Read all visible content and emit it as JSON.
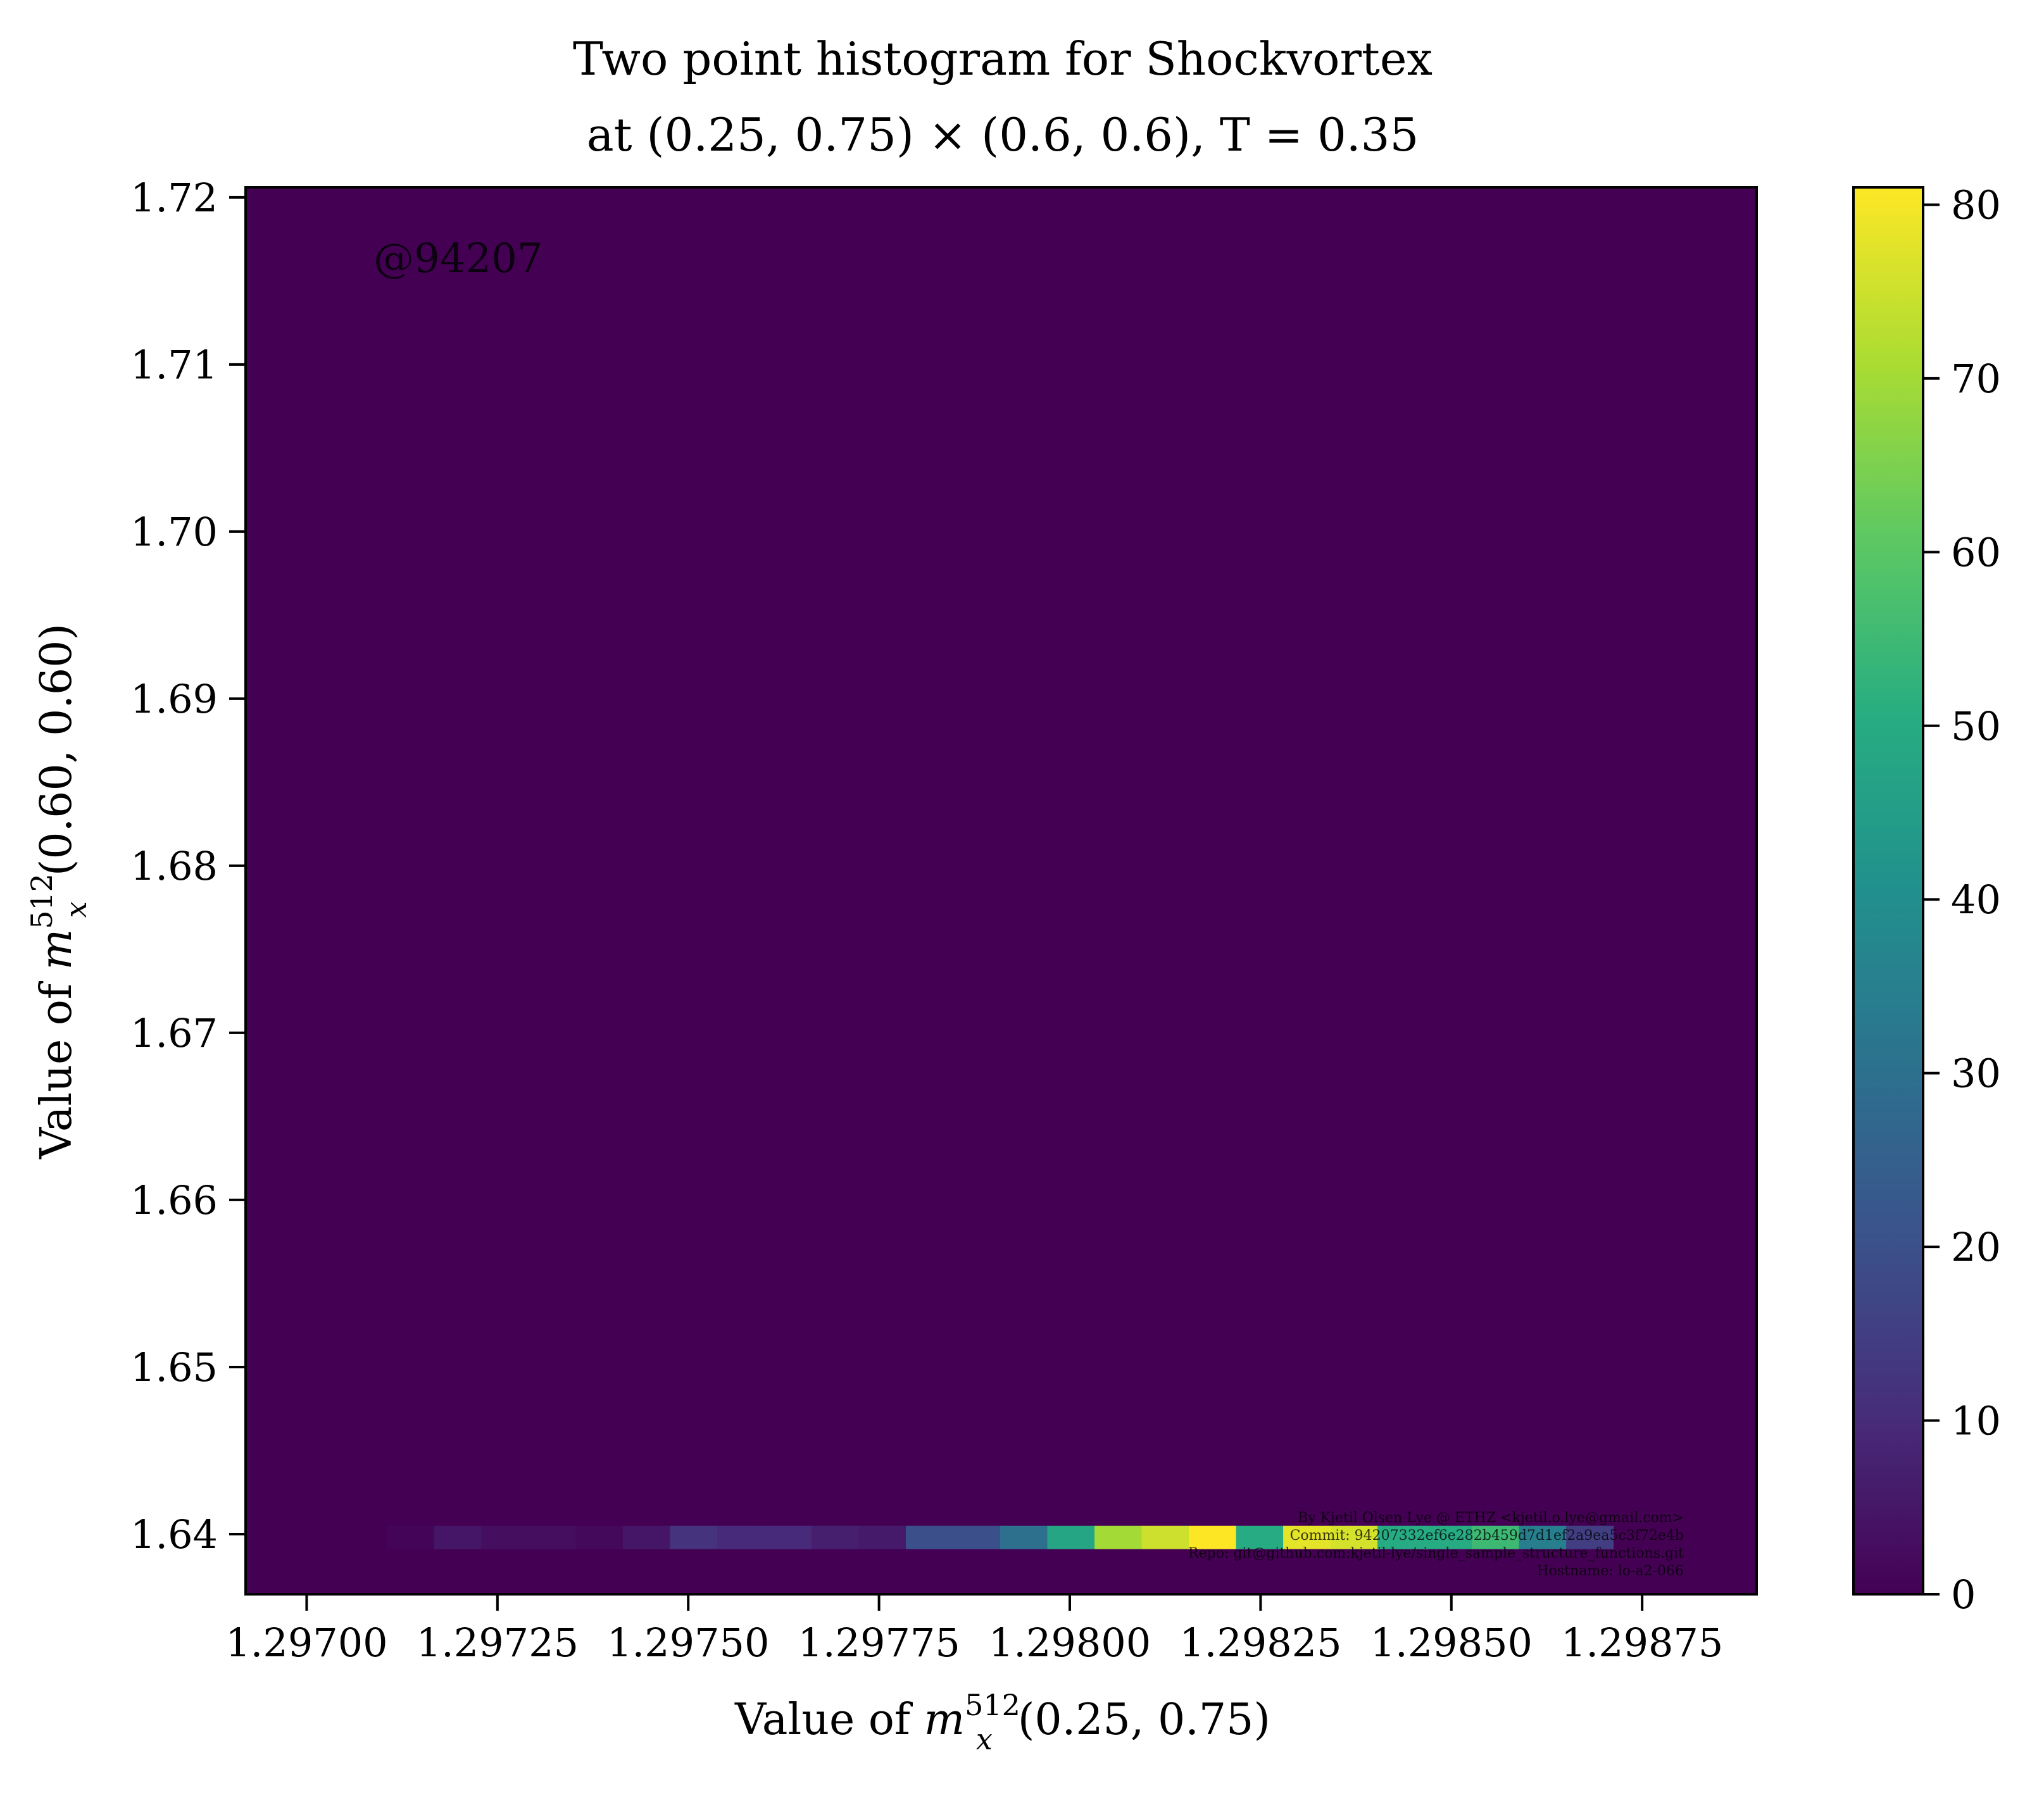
{
  "chart_data": {
    "type": "heatmap",
    "title_line1": "Two point histogram for Shockvortex",
    "title_line2": "at (0.25, 0.75) × (0.6, 0.6), T = 0.35",
    "xlabel": "Value of m_x^512(0.25, 0.75)",
    "xlabel_parts": {
      "pre": "Value of ",
      "m": "m",
      "sub": "x",
      "sup": "512",
      "post": "(0.25, 0.75)"
    },
    "ylabel": "Value of m_x^512(0.60, 0.60)",
    "ylabel_parts": {
      "pre": "Value of ",
      "m": "m",
      "sub": "x",
      "sup": "512",
      "post": "(0.60, 0.60)"
    },
    "xlim": [
      1.29692,
      1.2989
    ],
    "ylim": [
      1.6364,
      1.7206
    ],
    "x_ticks": [
      1.297,
      1.29725,
      1.2975,
      1.29775,
      1.298,
      1.29825,
      1.2985,
      1.29875
    ],
    "x_tick_labels": [
      "1.29700",
      "1.29725",
      "1.29750",
      "1.29775",
      "1.29800",
      "1.29825",
      "1.29850",
      "1.29875"
    ],
    "y_ticks": [
      1.64,
      1.65,
      1.66,
      1.67,
      1.68,
      1.69,
      1.7,
      1.71,
      1.72
    ],
    "y_tick_labels": [
      "1.64",
      "1.65",
      "1.66",
      "1.67",
      "1.68",
      "1.69",
      "1.70",
      "1.71",
      "1.72"
    ],
    "colorbar": {
      "colormap": "viridis",
      "range": [
        0,
        81
      ],
      "ticks": [
        0,
        10,
        20,
        30,
        40,
        50,
        60,
        70,
        80
      ],
      "tick_labels": [
        "0",
        "10",
        "20",
        "30",
        "40",
        "50",
        "60",
        "70",
        "80"
      ]
    },
    "background_value": 0,
    "row": {
      "y_range": [
        1.6391,
        1.6405
      ],
      "x_start": 1.29692,
      "bin_width": 6.18e-05,
      "counts": [
        0,
        0,
        0,
        1,
        5,
        3,
        3,
        2,
        5,
        12,
        10,
        10,
        7,
        6,
        20,
        20,
        30,
        48,
        70,
        75,
        81,
        50,
        78,
        76,
        50,
        50,
        55,
        35,
        15
      ]
    },
    "watermark": "@94207",
    "footer_lines": [
      "By Kjetil Olsen Lye @ ETHZ <kjetil.o.lye@gmail.com>",
      "Commit: 94207332ef6e282b459d7d1ef2a9ea5c3f72e4b",
      "Repo: git@github.com:kjetil-lye/single_sample_structure_functions.git",
      "Hostname: lo-a2-066"
    ],
    "grid": false,
    "legend": "none"
  }
}
